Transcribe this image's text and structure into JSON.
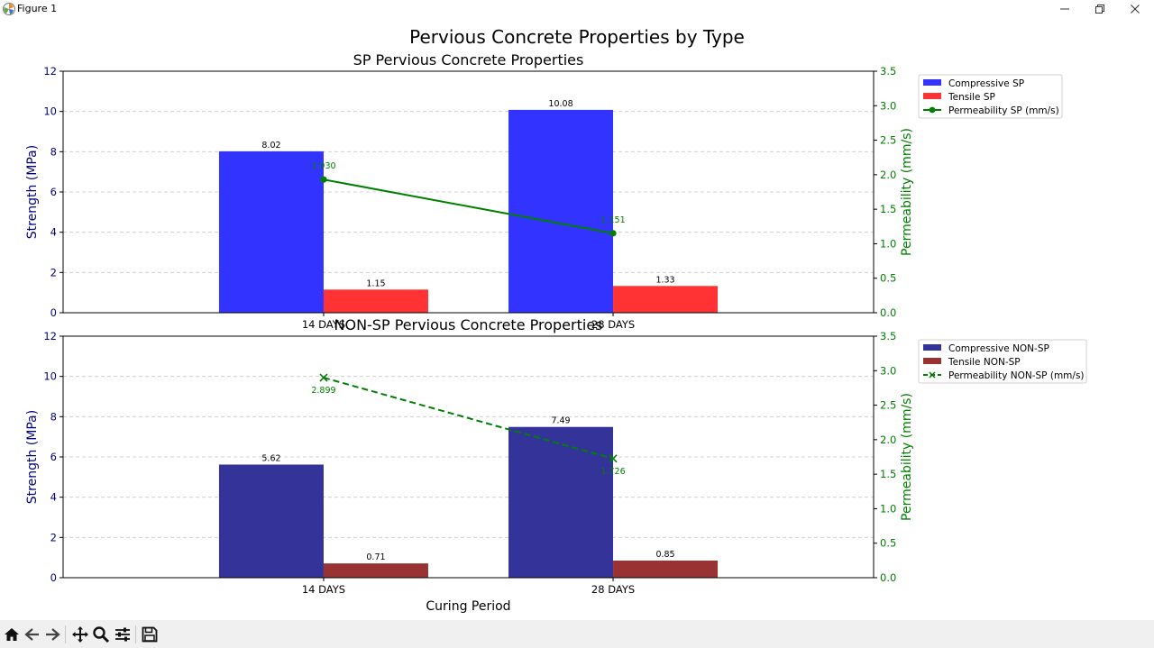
{
  "window": {
    "title": "Figure 1",
    "icon": "matplotlib-logo-icon",
    "controls": [
      "minimize-icon",
      "restore-icon",
      "close-icon"
    ]
  },
  "toolbar": {
    "buttons": [
      "home-icon",
      "back-icon",
      "forward-icon",
      "pan-icon",
      "zoom-icon",
      "configure-subplots-icon",
      "save-icon"
    ]
  },
  "colors": {
    "compressive_sp": "#3333ff",
    "tensile_sp": "#ff3333",
    "compressive_nonsp": "#333399",
    "tensile_nonsp": "#993333",
    "permeability": "#008000",
    "left_axis_text": "#000080"
  },
  "chart_data": {
    "suptitle": "Pervious Concrete Properties by Type",
    "charts": [
      {
        "type": "bar",
        "title": "SP Pervious Concrete Properties",
        "categories": [
          "14 DAYS",
          "28 DAYS"
        ],
        "xlabel": "",
        "ylabel": "Strength (MPa)",
        "ylim": [
          0,
          12
        ],
        "yticks": [
          "0",
          "2",
          "4",
          "6",
          "8",
          "10",
          "12"
        ],
        "y2label": "Permeability (mm/s)",
        "y2lim": [
          0,
          3.5
        ],
        "y2ticks": [
          "0.0",
          "0.5",
          "1.0",
          "1.5",
          "2.0",
          "2.5",
          "3.0",
          "3.5"
        ],
        "grid": "y-dashed",
        "legend_position": "outside-right-top",
        "series": [
          {
            "name": "Compressive SP",
            "kind": "bar",
            "values": [
              8.02,
              10.08
            ],
            "labels": [
              "8.02",
              "10.08"
            ]
          },
          {
            "name": "Tensile SP",
            "kind": "bar",
            "values": [
              1.15,
              1.33
            ],
            "labels": [
              "1.15",
              "1.33"
            ]
          },
          {
            "name": "Permeability SP (mm/s)",
            "kind": "line",
            "axis": "right",
            "marker": "circle",
            "linestyle": "solid",
            "values": [
              1.93,
              1.151
            ],
            "labels": [
              "1.930",
              "1.151"
            ]
          }
        ]
      },
      {
        "type": "bar",
        "title": "NON-SP Pervious Concrete Properties",
        "categories": [
          "14 DAYS",
          "28 DAYS"
        ],
        "xlabel": "Curing Period",
        "ylabel": "Strength (MPa)",
        "ylim": [
          0,
          12
        ],
        "yticks": [
          "0",
          "2",
          "4",
          "6",
          "8",
          "10",
          "12"
        ],
        "y2label": "Permeability (mm/s)",
        "y2lim": [
          0,
          3.5
        ],
        "y2ticks": [
          "0.0",
          "0.5",
          "1.0",
          "1.5",
          "2.0",
          "2.5",
          "3.0",
          "3.5"
        ],
        "grid": "y-dashed",
        "legend_position": "outside-right-top",
        "series": [
          {
            "name": "Compressive NON-SP",
            "kind": "bar",
            "values": [
              5.62,
              7.49
            ],
            "labels": [
              "5.62",
              "7.49"
            ]
          },
          {
            "name": "Tensile NON-SP",
            "kind": "bar",
            "values": [
              0.71,
              0.85
            ],
            "labels": [
              "0.71",
              "0.85"
            ]
          },
          {
            "name": "Permeability NON-SP (mm/s)",
            "kind": "line",
            "axis": "right",
            "marker": "x",
            "linestyle": "dashed",
            "values": [
              2.899,
              1.726
            ],
            "labels": [
              "2.899",
              "1.726"
            ]
          }
        ]
      }
    ]
  }
}
